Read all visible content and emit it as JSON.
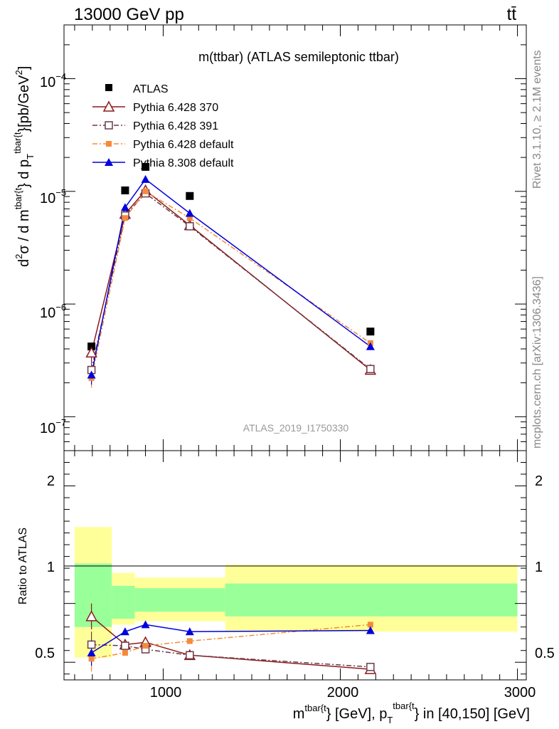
{
  "header": {
    "left": "13000 GeV pp",
    "right": "tt̄"
  },
  "side_text": {
    "rivet": "Rivet 3.1.10, ≥ 2.1M events",
    "source": "mcplots.cern.ch [arXiv:1306.3436]"
  },
  "colors": {
    "ATLAS": "#000000",
    "py6_370": "#8b1a1a",
    "py6_391": "#6b3a4a",
    "py6_default": "#f58a3a",
    "py8_default": "#0000dd",
    "band_inner": "#99ff99",
    "band_outer": "#ffff99"
  },
  "chart_data": [
    {
      "type": "scatter",
      "panel": "main",
      "title": "m(ttbar) (ATLAS semileptonic ttbar)",
      "watermark": "ATLAS_2019_I1750330",
      "ylabel_parts": {
        "d2": "d",
        "two": "2",
        "sigma": "σ / d m",
        "m_sup": "tbar{t",
        "brace1": "} d p",
        "p_sub": "T",
        "p_sup": "tbar{t",
        "brace2": "}[pb/GeV",
        "gev_sup": "2",
        "close": "]"
      },
      "y_scale": "log",
      "ylim": [
        5e-08,
        0.0003
      ],
      "xlim": [
        440,
        3050
      ],
      "ytick_labels": {
        "m7": {
          "base": "10",
          "exp": "−7"
        },
        "m6": {
          "base": "10",
          "exp": "−6"
        },
        "m5": {
          "base": "10",
          "exp": "−5"
        },
        "m4": {
          "base": "10",
          "exp": "−4"
        }
      },
      "legend_position": "top-left",
      "series": [
        {
          "name": "ATLAS",
          "marker": "square-filled",
          "line": "none",
          "x": [
            595,
            785,
            900,
            1150,
            2170
          ],
          "y": [
            4.2e-07,
            1.02e-05,
            1.65e-05,
            9.1e-06,
            5.7e-07
          ]
        },
        {
          "name": "Pythia 6.428 370",
          "marker": "triangle-open",
          "line": "solid",
          "x": [
            595,
            785,
            900,
            1150,
            2170
          ],
          "y": [
            3.7e-07,
            6.3e-06,
            1.02e-05,
            5e-06,
            2.6e-07
          ]
        },
        {
          "name": "Pythia 6.428 391",
          "marker": "square-open",
          "line": "dash-dot",
          "x": [
            595,
            785,
            900,
            1150,
            2170
          ],
          "y": [
            2.6e-07,
            6.1e-06,
            9.6e-06,
            4.9e-06,
            2.65e-07
          ]
        },
        {
          "name": "Pythia 6.428 default",
          "marker": "square-filled",
          "line": "dash-dot",
          "x": [
            595,
            785,
            900,
            1150,
            2170
          ],
          "y": [
            2.2e-07,
            5.8e-06,
            1e-05,
            5.8e-06,
            4.5e-07
          ]
        },
        {
          "name": "Pythia 8.308 default",
          "marker": "triangle-filled",
          "line": "solid",
          "x": [
            595,
            785,
            900,
            1150,
            2170
          ],
          "y": [
            2.35e-07,
            7.2e-06,
            1.28e-05,
            6.4e-06,
            4.2e-07
          ]
        }
      ]
    },
    {
      "type": "line",
      "panel": "ratio",
      "ylabel": "Ratio to ATLAS",
      "xlabel_parts": {
        "m": "m",
        "m_sup": "tbar{t",
        "mid": "} [GeV], p",
        "p_sub": "T",
        "p_sup": "tbar{t",
        "end": "} in [40,150] [GeV]"
      },
      "ylim": [
        0.35,
        2.3
      ],
      "xlim": [
        440,
        3050
      ],
      "xtick_labels": [
        "1000",
        "2000",
        "3000"
      ],
      "ytick_labels": [
        "0.5",
        "1",
        "2"
      ],
      "bands": [
        {
          "x_low": 500,
          "x_high": 710,
          "inner": [
            0.8,
            1.34
          ],
          "outer": [
            0.54,
            1.65
          ]
        },
        {
          "x_low": 710,
          "x_high": 840,
          "inner": [
            0.87,
            1.15
          ],
          "outer": [
            0.82,
            1.26
          ]
        },
        {
          "x_low": 840,
          "x_high": 1350,
          "inner": [
            0.93,
            1.13
          ],
          "outer": [
            0.85,
            1.22
          ]
        },
        {
          "x_low": 1350,
          "x_high": 3000,
          "inner": [
            0.89,
            1.17
          ],
          "outer": [
            0.76,
            1.33
          ]
        }
      ],
      "series": [
        {
          "name": "Pythia 6.428 370",
          "x": [
            595,
            785,
            900,
            1150,
            2170
          ],
          "y": [
            0.89,
            0.65,
            0.67,
            0.56,
            0.44
          ]
        },
        {
          "name": "Pythia 6.428 391",
          "x": [
            595,
            785,
            900,
            1150,
            2170
          ],
          "y": [
            0.65,
            0.64,
            0.61,
            0.56,
            0.46
          ]
        },
        {
          "name": "Pythia 6.428 default",
          "x": [
            595,
            785,
            900,
            1150,
            2170
          ],
          "y": [
            0.53,
            0.58,
            0.64,
            0.68,
            0.82
          ]
        },
        {
          "name": "Pythia 8.308 default",
          "x": [
            595,
            785,
            900,
            1150,
            2170
          ],
          "y": [
            0.58,
            0.76,
            0.82,
            0.76,
            0.77
          ]
        }
      ]
    }
  ]
}
